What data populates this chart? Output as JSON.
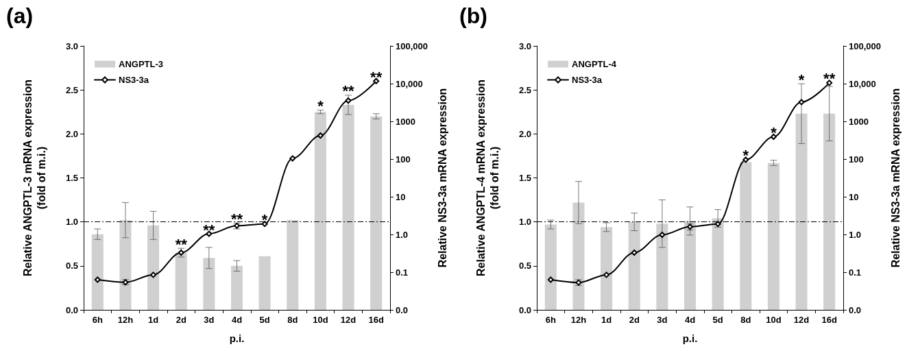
{
  "chart_data": [
    {
      "type": "bar",
      "title": "(a)",
      "xlabel": "p.i.",
      "ylabel": "Relative ANGPTL-3 mRNA expression\n(fold of m.i.)",
      "y2label": "Relative NS3-3a mRNA expression",
      "categories": [
        "6h",
        "12h",
        "1d",
        "2d",
        "3d",
        "4d",
        "5d",
        "8d",
        "10d",
        "12d",
        "16d"
      ],
      "series": [
        {
          "name": "ANGPTL-3",
          "type": "bar",
          "color": "#d0d0d0",
          "values": [
            0.86,
            1.02,
            0.96,
            0.65,
            0.59,
            0.5,
            0.61,
            1.02,
            2.25,
            2.33,
            2.2
          ],
          "errors": [
            0.06,
            0.2,
            0.16,
            0.05,
            0.12,
            0.06,
            null,
            null,
            0.02,
            0.11,
            0.03
          ]
        },
        {
          "name": "NS3-3a",
          "type": "line",
          "axis": "y2",
          "color": "#000000",
          "marker": "diamond",
          "values": [
            0.063,
            0.054,
            0.085,
            0.33,
            1.04,
            1.7,
            1.9,
            104,
            420,
            3550,
            11700
          ],
          "errors": [
            null,
            [
              0.046,
              0.064
            ],
            null,
            null,
            null,
            [
              1.4,
              2.0
            ],
            null,
            null,
            null,
            null,
            null
          ]
        }
      ],
      "ylim": [
        0,
        3
      ],
      "yticks": [
        {
          "value": 0,
          "label": "0.0"
        },
        0.5,
        {
          "value": 1,
          "label": "1.0"
        },
        1.5,
        {
          "value": 2,
          "label": "2.0"
        },
        2.5,
        {
          "value": 3,
          "label": "3.0"
        }
      ],
      "y2lim": [
        0.01,
        100000
      ],
      "y2ticks": [
        {
          "value": 0.01,
          "label": "0.0"
        },
        {
          "value": 0.1,
          "label": "0.1"
        },
        {
          "value": 1,
          "label": "1.0"
        },
        10,
        100,
        1000,
        {
          "value": 10000,
          "label": "10,000"
        },
        {
          "value": 100000,
          "label": "100,000"
        }
      ],
      "log": "y2",
      "ref_lines": [
        {
          "axis": "y",
          "value": 1,
          "line_style": "dashdot",
          "color": "#000000"
        }
      ],
      "legend": "top left",
      "grid": false,
      "annotations": [
        {
          "text": "**",
          "x": "2d",
          "y": 0.7
        },
        {
          "text": "**",
          "x": "3d",
          "y": 0.71
        },
        {
          "text": "**",
          "x": "4d",
          "y": 0.56
        },
        {
          "text": "*",
          "x": "5d",
          "y": 0.61
        },
        {
          "text": "*",
          "x": "10d",
          "y": 2.27
        },
        {
          "text": "**",
          "x": "12d",
          "y": 2.44
        },
        {
          "text": "**",
          "x": "16d",
          "y": 2.23
        }
      ]
    },
    {
      "type": "bar",
      "title": "(b)",
      "xlabel": "p.i.",
      "ylabel": "Relative ANGPTL-4 mRNA expression\n(fold of m.i.)",
      "y2label": "Relative NS3-3a mRNA expression",
      "categories": [
        "6h",
        "12h",
        "1d",
        "2d",
        "3d",
        "4d",
        "5d",
        "8d",
        "10d",
        "12d",
        "16d"
      ],
      "series": [
        {
          "name": "ANGPTL-4",
          "type": "bar",
          "color": "#d0d0d0",
          "values": [
            0.97,
            1.22,
            0.94,
            1.0,
            0.98,
            1.01,
            1.04,
            1.68,
            1.67,
            2.23,
            2.23
          ],
          "errors": [
            0.05,
            0.24,
            0.05,
            0.1,
            0.27,
            0.16,
            0.1,
            null,
            0.03,
            0.34,
            0.31
          ]
        },
        {
          "name": "NS3-3a",
          "type": "line",
          "axis": "y2",
          "color": "#000000",
          "marker": "diamond",
          "values": [
            0.063,
            0.053,
            0.085,
            0.33,
            0.98,
            1.6,
            1.9,
            96,
            390,
            3240,
            10500
          ],
          "errors": [
            null,
            [
              0.044,
              0.063
            ],
            null,
            null,
            null,
            [
              1.3,
              1.9
            ],
            null,
            null,
            null,
            null,
            null
          ]
        }
      ],
      "ylim": [
        0,
        3
      ],
      "yticks": [
        {
          "value": 0,
          "label": "0.0"
        },
        0.5,
        {
          "value": 1,
          "label": "1.0"
        },
        1.5,
        {
          "value": 2,
          "label": "2.0"
        },
        2.5,
        {
          "value": 3,
          "label": "3.0"
        }
      ],
      "y2lim": [
        0.01,
        100000
      ],
      "y2ticks": [
        {
          "value": 0.01,
          "label": "0.0"
        },
        {
          "value": 0.1,
          "label": "0.1"
        },
        {
          "value": 1,
          "label": "1.0"
        },
        10,
        100,
        1000,
        {
          "value": 10000,
          "label": "10,000"
        },
        {
          "value": 100000,
          "label": "100,000"
        }
      ],
      "log": "y2",
      "ref_lines": [
        {
          "axis": "y",
          "value": 1,
          "line_style": "dashdot",
          "color": "#000000"
        }
      ],
      "legend": "top left",
      "grid": false,
      "annotations": [
        {
          "text": "*",
          "x": "8d",
          "y": 1.68
        },
        {
          "text": "*",
          "x": "10d",
          "y": 1.7
        },
        {
          "text": "*",
          "x": "12d",
          "y": 2.57
        },
        {
          "text": "**",
          "x": "16d",
          "y": 2.54
        }
      ]
    }
  ]
}
